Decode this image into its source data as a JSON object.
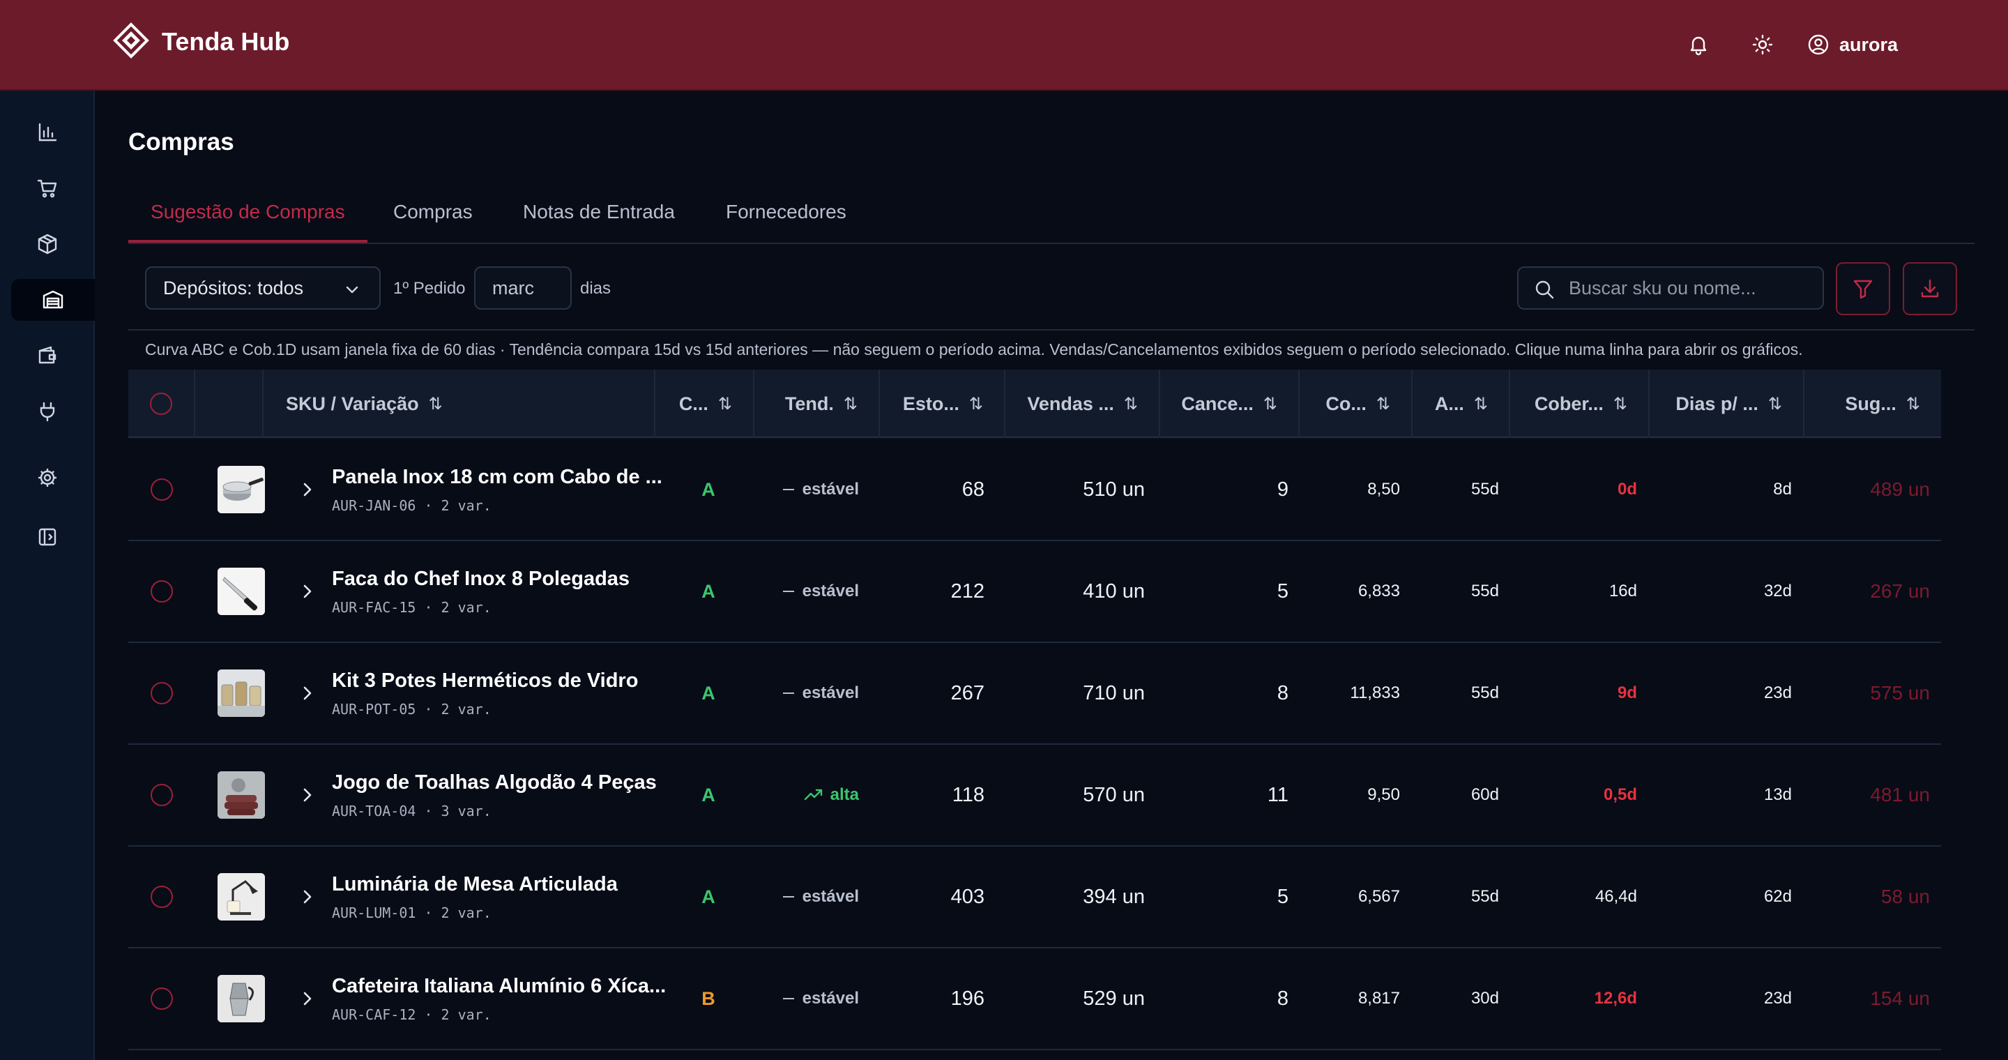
{
  "app": {
    "name": "Tenda Hub",
    "username": "aurora",
    "colors": {
      "brand": "#6c1b2b",
      "accent": "#c52a49",
      "curve_a": "#3cc56d",
      "curve_b": "#f09a28",
      "danger": "#e8323f",
      "suggestion": "#7e1a2e",
      "trend_up": "#3cc56d"
    }
  },
  "header_icons": [
    "bell-icon",
    "sun-icon",
    "user-circle-icon"
  ],
  "sidebar": {
    "items": [
      {
        "icon": "bar-chart-icon"
      },
      {
        "icon": "cart-icon"
      },
      {
        "icon": "box-icon"
      },
      {
        "icon": "warehouse-icon",
        "active": true
      },
      {
        "icon": "wallet-icon"
      },
      {
        "icon": "plug-icon"
      },
      {
        "icon": "gear-icon"
      },
      {
        "icon": "panel-toggle-icon"
      }
    ]
  },
  "page": {
    "title": "Compras",
    "tabs": [
      "Sugestão de Compras",
      "Compras",
      "Notas de Entrada",
      "Fornecedores"
    ],
    "active_tab": 0
  },
  "toolbar": {
    "deposit_select": "Depósitos: todos",
    "first_order_label": "1º Pedido",
    "first_order_value": "marc",
    "days_label": "dias",
    "search_placeholder": "Buscar sku ou nome..."
  },
  "info_text": "Curva ABC e Cob.1D usam janela fixa de 60 dias · Tendência compara 15d vs 15d anteriores — não seguem o período acima. Vendas/Cancelamentos exibidos seguem o período selecionado. Clique numa linha para abrir os gráficos.",
  "table": {
    "sort_glyph": "⇅",
    "columns": [
      "SKU / Variação",
      "C...",
      "Tend.",
      "Esto...",
      "Vendas ...",
      "Cance...",
      "Co...",
      "A...",
      "Cober...",
      "Dias p/ ...",
      "Sug..."
    ],
    "rows": [
      {
        "name": "Panela Inox 18 cm com Cabo de ...",
        "sku": "AUR-JAN-06 · 2 var.",
        "thumb": "pan",
        "curve": "A",
        "trend": "estável",
        "trend_dir": "flat",
        "stock": "68",
        "sales": "510 un",
        "cancel": "9",
        "cob1d": "8,50",
        "age": "55d",
        "coverage": "0d",
        "coverage_alert": true,
        "days_to": "8d",
        "suggestion": "489 un"
      },
      {
        "name": "Faca do Chef Inox 8 Polegadas",
        "sku": "AUR-FAC-15 · 2 var.",
        "thumb": "knife",
        "curve": "A",
        "trend": "estável",
        "trend_dir": "flat",
        "stock": "212",
        "sales": "410 un",
        "cancel": "5",
        "cob1d": "6,833",
        "age": "55d",
        "coverage": "16d",
        "coverage_alert": false,
        "days_to": "32d",
        "suggestion": "267 un"
      },
      {
        "name": "Kit 3 Potes Herméticos de Vidro",
        "sku": "AUR-POT-05 · 2 var.",
        "thumb": "jars",
        "curve": "A",
        "trend": "estável",
        "trend_dir": "flat",
        "stock": "267",
        "sales": "710 un",
        "cancel": "8",
        "cob1d": "11,833",
        "age": "55d",
        "coverage": "9d",
        "coverage_alert": true,
        "days_to": "23d",
        "suggestion": "575 un"
      },
      {
        "name": "Jogo de Toalhas Algodão 4 Peças",
        "sku": "AUR-TOA-04 · 3 var.",
        "thumb": "towels",
        "curve": "A",
        "trend": "alta",
        "trend_dir": "up",
        "stock": "118",
        "sales": "570 un",
        "cancel": "11",
        "cob1d": "9,50",
        "age": "60d",
        "coverage": "0,5d",
        "coverage_alert": true,
        "days_to": "13d",
        "suggestion": "481 un"
      },
      {
        "name": "Luminária de Mesa Articulada",
        "sku": "AUR-LUM-01 · 2 var.",
        "thumb": "lamp",
        "curve": "A",
        "trend": "estável",
        "trend_dir": "flat",
        "stock": "403",
        "sales": "394 un",
        "cancel": "5",
        "cob1d": "6,567",
        "age": "55d",
        "coverage": "46,4d",
        "coverage_alert": false,
        "days_to": "62d",
        "suggestion": "58 un"
      },
      {
        "name": "Cafeteira Italiana Alumínio 6 Xíca...",
        "sku": "AUR-CAF-12 · 2 var.",
        "thumb": "moka",
        "curve": "B",
        "trend": "estável",
        "trend_dir": "flat",
        "stock": "196",
        "sales": "529 un",
        "cancel": "8",
        "cob1d": "8,817",
        "age": "30d",
        "coverage": "12,6d",
        "coverage_alert": true,
        "days_to": "23d",
        "suggestion": "154 un"
      }
    ]
  }
}
